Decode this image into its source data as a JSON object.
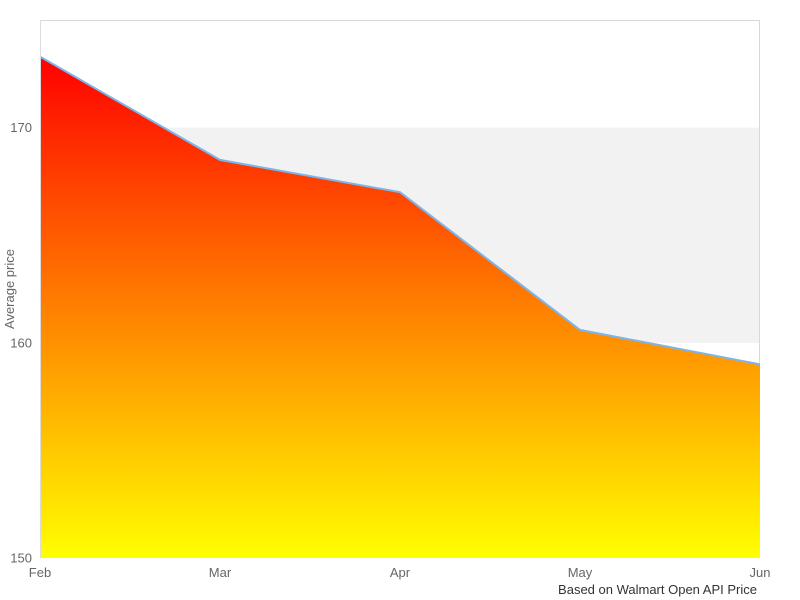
{
  "chart_data": {
    "type": "area",
    "categories": [
      "Feb",
      "Mar",
      "Apr",
      "May",
      "Jun"
    ],
    "values": [
      173.3,
      168.5,
      167.0,
      160.6,
      159.0
    ],
    "title": "",
    "xlabel": "",
    "ylabel": "Average price",
    "caption": "Based on Walmart Open API Price",
    "ylim": [
      150,
      175
    ],
    "yticks": [
      150,
      160,
      170
    ],
    "band": {
      "from": 160,
      "to": 170,
      "color": "#f2f2f2"
    },
    "line_color": "#7cb5ec",
    "gradient_top": "#ff0000",
    "gradient_bottom": "#ffff00",
    "border_color": "#d8d8d8",
    "axis_line_color": "#dcdcdc",
    "tick_label_color": "#666666",
    "caption_color": "#333333",
    "legend_position": "none",
    "grid": false
  }
}
